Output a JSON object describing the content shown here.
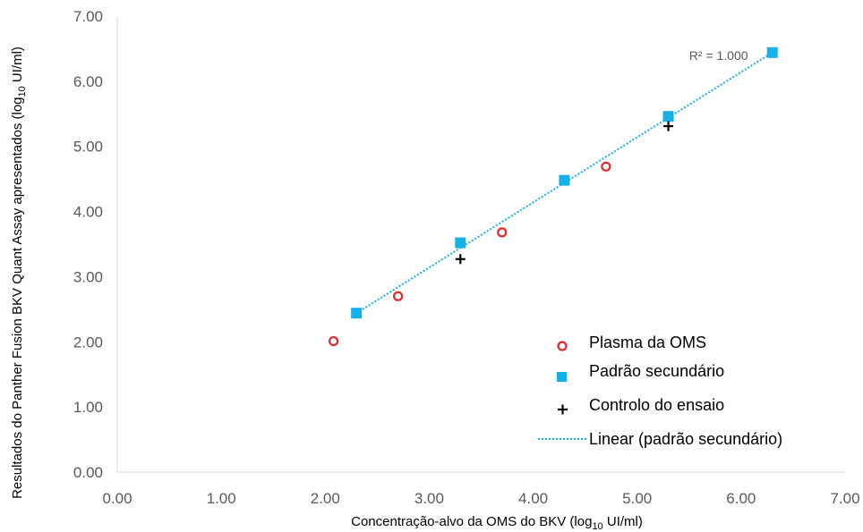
{
  "chart_data": {
    "type": "scatter",
    "xlabel": "Concentração-alvo da OMS do BKV (log",
    "xlabel_sub": "10",
    "xlabel_end": " UI/ml)",
    "ylabel": "Resultados do Panther Fusion BKV Quant Assay apresentados (log",
    "ylabel_sub": "10",
    "ylabel_end": " UI/ml)",
    "xlim": [
      0,
      7
    ],
    "ylim": [
      0,
      7
    ],
    "x_ticks": [
      "0.00",
      "1.00",
      "2.00",
      "3.00",
      "4.00",
      "5.00",
      "6.00",
      "7.00"
    ],
    "y_ticks": [
      "0.00",
      "1.00",
      "2.00",
      "3.00",
      "4.00",
      "5.00",
      "6.00",
      "7.00"
    ],
    "grid": false,
    "legend_position": "bottom-right",
    "series": [
      {
        "name": "Plasma da OMS",
        "marker": "open-circle",
        "color": "#e8262a",
        "points": [
          [
            2.08,
            2.01
          ],
          [
            2.7,
            2.7
          ],
          [
            3.7,
            3.68
          ],
          [
            4.7,
            4.69
          ]
        ]
      },
      {
        "name": "Padrão secundário",
        "marker": "square",
        "color": "#14b0ea",
        "points": [
          [
            2.3,
            2.44
          ],
          [
            3.3,
            3.52
          ],
          [
            4.3,
            4.48
          ],
          [
            5.3,
            5.46
          ],
          [
            6.3,
            6.44
          ]
        ]
      },
      {
        "name": "Controlo do ensaio",
        "marker": "plus",
        "color": "#000000",
        "points": [
          [
            3.3,
            3.27
          ],
          [
            5.3,
            5.31
          ]
        ]
      }
    ],
    "trendline": {
      "name": "Linear (padrão secundário)",
      "style": "dotted",
      "color": "#14b0ea",
      "from": [
        2.3,
        2.44
      ],
      "to": [
        6.3,
        6.44
      ],
      "annotation": "R² = 1.000",
      "annotation_at": [
        5.5,
        6.33
      ]
    }
  }
}
